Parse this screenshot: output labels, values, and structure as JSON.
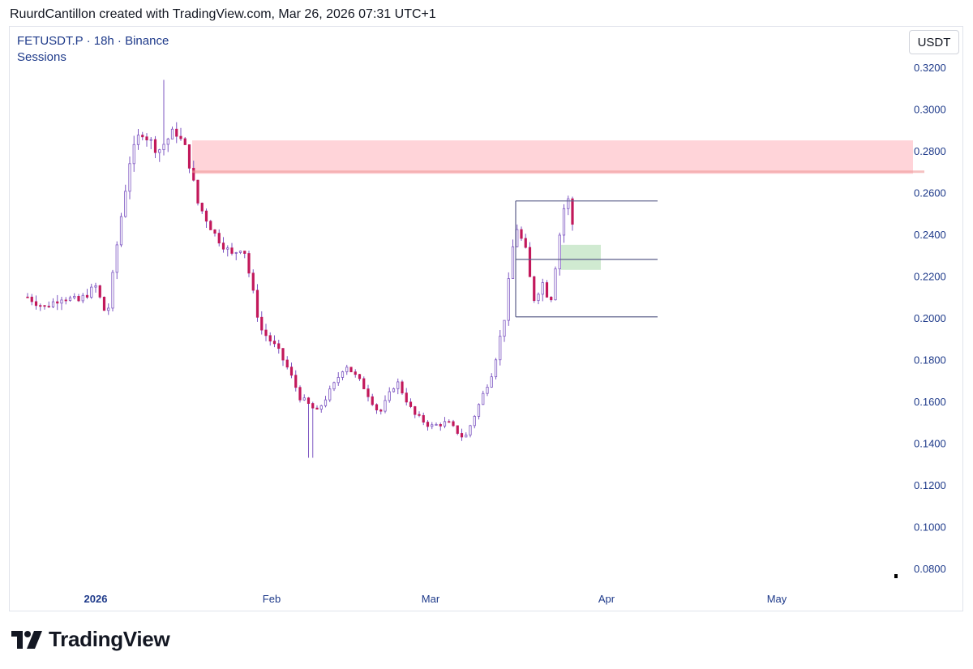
{
  "header": {
    "attribution": "RuurdCantillon created with TradingView.com, Mar 26, 2026 07:31 UTC+1"
  },
  "legend": {
    "symbol_line": "FETUSDT.P · 18h · Binance",
    "indicator": "Sessions"
  },
  "currency_button": "USDT",
  "brand": {
    "name": "TradingView",
    "logo_icon": "tradingview-logo-icon"
  },
  "colors": {
    "candle": "#7e57c2",
    "candle_down": "#c2185b",
    "supply_zone": "#ffcdd2",
    "demand_zone": "#c8e6c9",
    "range_lines": "#5c5f8a",
    "axis_text": "#1e3a8a"
  },
  "chart_data": {
    "type": "candlestick",
    "symbol": "FETUSDT.P",
    "interval": "18h",
    "exchange": "Binance",
    "y_axis": {
      "ticks": [
        "0.3200",
        "0.3000",
        "0.2800",
        "0.2600",
        "0.2400",
        "0.2200",
        "0.2000",
        "0.1800",
        "0.1600",
        "0.1400",
        "0.1200",
        "0.1000",
        "0.0800"
      ],
      "ylim": [
        0.074,
        0.325
      ],
      "side": "right"
    },
    "x_axis": {
      "labels": [
        {
          "text": "2026",
          "bold": true
        },
        {
          "text": "Feb",
          "bold": false
        },
        {
          "text": "Mar",
          "bold": false
        },
        {
          "text": "Apr",
          "bold": false
        },
        {
          "text": "May",
          "bold": false
        }
      ]
    },
    "price_path": [
      {
        "d": "2025-12-20",
        "p": 0.21
      },
      {
        "d": "2025-12-23",
        "p": 0.205
      },
      {
        "d": "2025-12-26",
        "p": 0.21
      },
      {
        "d": "2025-12-29",
        "p": 0.208
      },
      {
        "d": "2026-01-01",
        "p": 0.215
      },
      {
        "d": "2026-01-03",
        "p": 0.2
      },
      {
        "d": "2026-01-05",
        "p": 0.24
      },
      {
        "d": "2026-01-07",
        "p": 0.275
      },
      {
        "d": "2026-01-09",
        "p": 0.29
      },
      {
        "d": "2026-01-12",
        "p": 0.28
      },
      {
        "d": "2026-01-15",
        "p": 0.29
      },
      {
        "d": "2026-01-17",
        "p": 0.28
      },
      {
        "d": "2026-01-19",
        "p": 0.255
      },
      {
        "d": "2026-01-22",
        "p": 0.24
      },
      {
        "d": "2026-01-25",
        "p": 0.23
      },
      {
        "d": "2026-01-27",
        "p": 0.235
      },
      {
        "d": "2026-01-30",
        "p": 0.195
      },
      {
        "d": "2026-02-02",
        "p": 0.185
      },
      {
        "d": "2026-02-04",
        "p": 0.175
      },
      {
        "d": "2026-02-06",
        "p": 0.162
      },
      {
        "d": "2026-02-09",
        "p": 0.155
      },
      {
        "d": "2026-02-12",
        "p": 0.168
      },
      {
        "d": "2026-02-14",
        "p": 0.178
      },
      {
        "d": "2026-02-17",
        "p": 0.168
      },
      {
        "d": "2026-02-20",
        "p": 0.154
      },
      {
        "d": "2026-02-23",
        "p": 0.17
      },
      {
        "d": "2026-02-26",
        "p": 0.154
      },
      {
        "d": "2026-03-01",
        "p": 0.148
      },
      {
        "d": "2026-03-04",
        "p": 0.15
      },
      {
        "d": "2026-03-07",
        "p": 0.142
      },
      {
        "d": "2026-03-09",
        "p": 0.155
      },
      {
        "d": "2026-03-12",
        "p": 0.175
      },
      {
        "d": "2026-03-14",
        "p": 0.2
      },
      {
        "d": "2026-03-16",
        "p": 0.245
      },
      {
        "d": "2026-03-18",
        "p": 0.23
      },
      {
        "d": "2026-03-19",
        "p": 0.208
      },
      {
        "d": "2026-03-21",
        "p": 0.218
      },
      {
        "d": "2026-03-22",
        "p": 0.205
      },
      {
        "d": "2026-03-24",
        "p": 0.245
      },
      {
        "d": "2026-03-25",
        "p": 0.26
      },
      {
        "d": "2026-03-26",
        "p": 0.245
      }
    ],
    "notable_extremes": {
      "high": 0.314,
      "low": 0.133
    },
    "zones": [
      {
        "name": "supply",
        "from_date": "2026-01-18",
        "to_date": "2026-05-25",
        "top": 0.285,
        "bottom": 0.269,
        "color": "#ffcdd2"
      },
      {
        "name": "demand",
        "from_date": "2026-03-24",
        "to_date": "2026-03-31",
        "top": 0.235,
        "bottom": 0.223,
        "color": "#c8e6c9"
      }
    ],
    "horizontal_lines": [
      {
        "name": "range-high",
        "price": 0.256,
        "from_date": "2026-03-16",
        "to_date": "2026-04-10"
      },
      {
        "name": "range-mid",
        "price": 0.228,
        "from_date": "2026-03-16",
        "to_date": "2026-04-10"
      },
      {
        "name": "range-low",
        "price": 0.2005,
        "from_date": "2026-03-16",
        "to_date": "2026-04-10"
      },
      {
        "name": "supply-edge",
        "price": 0.27,
        "from_date": "2026-01-18",
        "to_date": "2026-05-27"
      }
    ]
  }
}
